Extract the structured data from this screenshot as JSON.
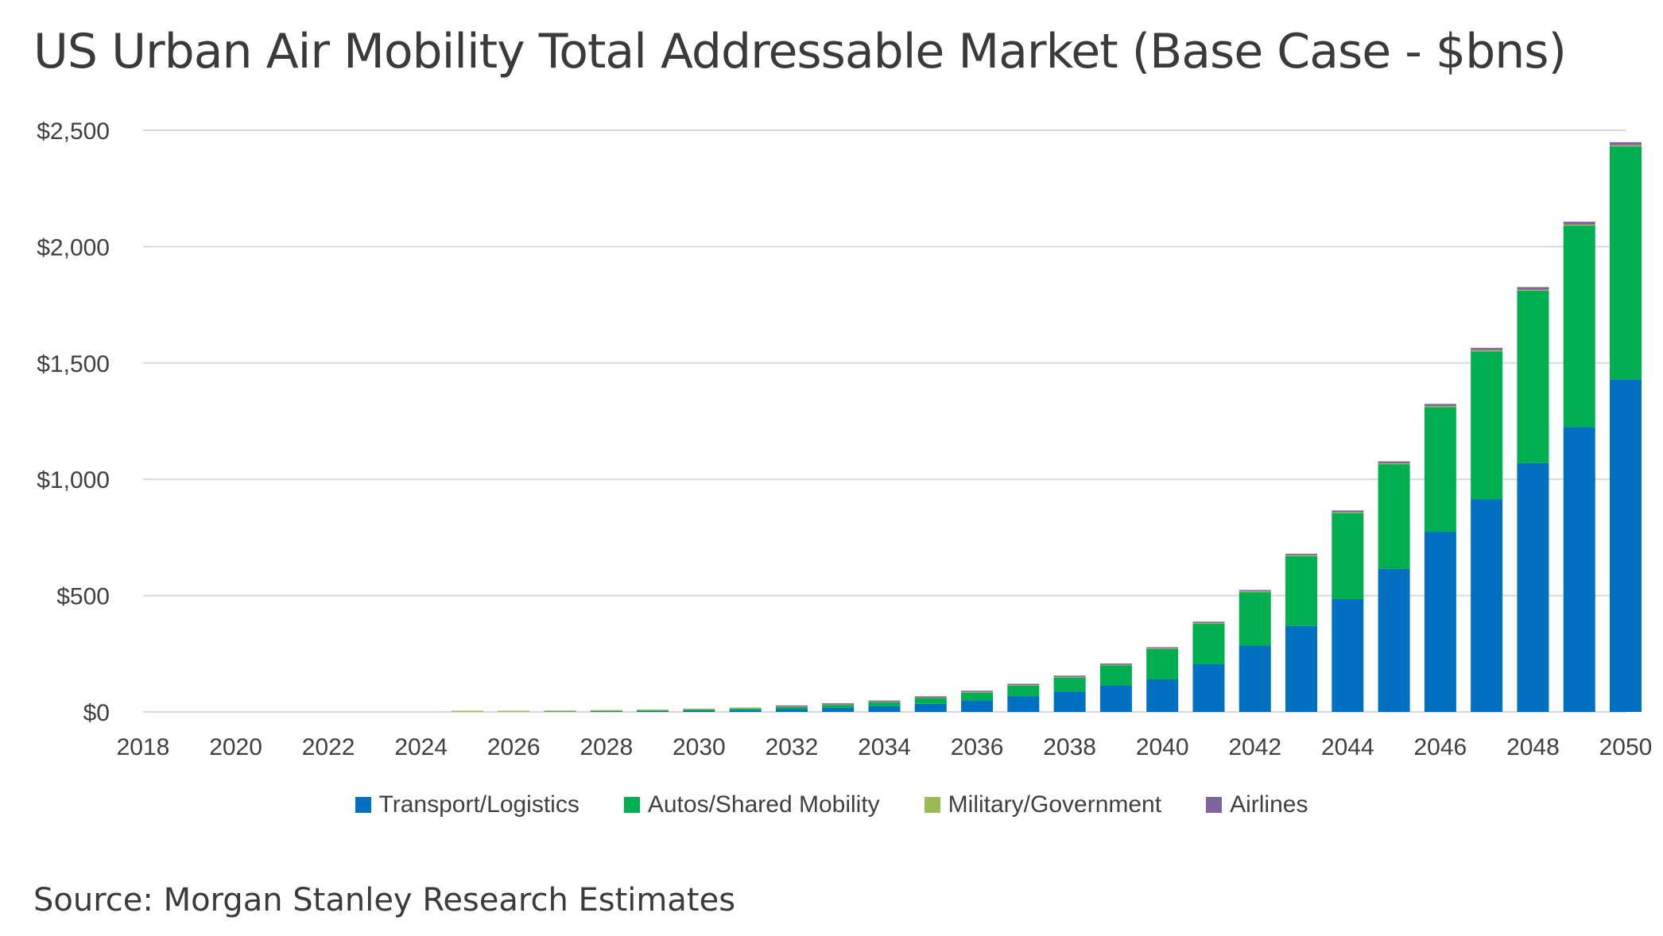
{
  "title": "US Urban Air Mobility Total Addressable Market (Base Case - $bns)",
  "source": "Source: Morgan Stanley Research Estimates",
  "colors": {
    "transport": "#0070C0",
    "autos": "#00B050",
    "military": "#9BBB59",
    "airlines": "#8064A2",
    "grid": "#d9d9d9",
    "tick_text": "#404040"
  },
  "chart_data": {
    "type": "bar",
    "stacked": true,
    "categories": [
      2018,
      2019,
      2020,
      2021,
      2022,
      2023,
      2024,
      2025,
      2026,
      2027,
      2028,
      2029,
      2030,
      2031,
      2032,
      2033,
      2034,
      2035,
      2036,
      2037,
      2038,
      2039,
      2040,
      2041,
      2042,
      2043,
      2044,
      2045,
      2046,
      2047,
      2048,
      2049,
      2050
    ],
    "x_tick_labels": [
      "2018",
      "2020",
      "2022",
      "2024",
      "2026",
      "2028",
      "2030",
      "2032",
      "2034",
      "2036",
      "2038",
      "2040",
      "2042",
      "2044",
      "2046",
      "2048",
      "2050"
    ],
    "y_tick_labels": [
      "$0",
      "$500",
      "$1,000",
      "$1,500",
      "$2,000",
      "$2,500"
    ],
    "ylim": [
      0,
      2500
    ],
    "y_ticks": [
      0,
      500,
      1000,
      1500,
      2000,
      2500
    ],
    "grid": true,
    "legend_position": "bottom",
    "series": [
      {
        "name": "Transport/Logistics",
        "color_key": "transport",
        "values": [
          0,
          0,
          0,
          0,
          0,
          0,
          0,
          0,
          0,
          1,
          2,
          3,
          5,
          8,
          12,
          18,
          25,
          35,
          50,
          68,
          88,
          115,
          140,
          205,
          285,
          370,
          485,
          615,
          775,
          915,
          1070,
          1225,
          1430
        ]
      },
      {
        "name": "Autos/Shared Mobility",
        "color_key": "autos",
        "values": [
          0,
          0,
          0,
          0,
          0,
          0,
          0,
          0,
          0,
          0,
          1,
          2,
          4,
          6,
          9,
          12,
          17,
          25,
          33,
          45,
          60,
          85,
          130,
          175,
          230,
          300,
          370,
          450,
          535,
          635,
          740,
          865,
          1000
        ]
      },
      {
        "name": "Military/Government",
        "color_key": "military",
        "values": [
          0,
          0,
          0,
          0,
          0,
          0,
          0,
          1,
          1,
          2,
          2,
          2,
          2,
          2,
          2,
          2,
          2,
          2,
          3,
          3,
          3,
          3,
          3,
          3,
          4,
          4,
          4,
          4,
          5,
          5,
          5,
          5,
          6
        ]
      },
      {
        "name": "Airlines",
        "color_key": "airlines",
        "values": [
          0,
          0,
          0,
          0,
          0,
          0,
          0,
          0,
          0,
          0,
          0,
          0,
          0,
          0,
          1,
          1,
          1,
          2,
          2,
          2,
          3,
          3,
          3,
          4,
          5,
          6,
          7,
          8,
          9,
          10,
          11,
          12,
          13
        ]
      }
    ]
  }
}
